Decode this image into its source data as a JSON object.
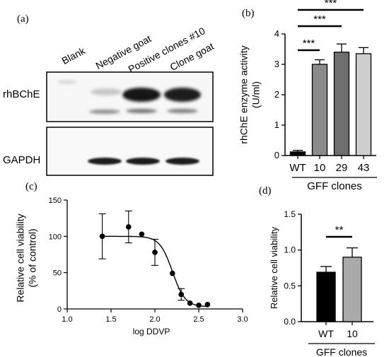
{
  "panels": {
    "a": "(a)",
    "b": "(b)",
    "c": "(c)",
    "d": "(d)"
  },
  "blot": {
    "columns": [
      "Blank",
      "Negative goat",
      "Positive clones #10",
      "Clone goat"
    ],
    "rows": [
      "rhBChE",
      "GAPDH"
    ]
  },
  "chart_data": [
    {
      "id": "b",
      "type": "bar",
      "categories": [
        "WT",
        "10",
        "29",
        "43"
      ],
      "values": [
        0.12,
        3.0,
        3.4,
        3.35
      ],
      "errors": [
        0.05,
        0.15,
        0.27,
        0.2
      ],
      "bar_colors": [
        "#000000",
        "#8c8c8c",
        "#6e6e6e",
        "#cfcfcf"
      ],
      "ylabel": "rhChE enzyme activity\n(U/ml)",
      "xgroup_label": "GFF clones",
      "ylim": [
        0,
        4
      ],
      "yticks": [
        0,
        1,
        2,
        3,
        4
      ],
      "significance": [
        {
          "from": 0,
          "to": 1,
          "label": "***"
        },
        {
          "from": 0,
          "to": 2,
          "label": "***"
        },
        {
          "from": 0,
          "to": 3,
          "label": "***"
        }
      ]
    },
    {
      "id": "c",
      "type": "scatter",
      "x": [
        1.4,
        1.7,
        1.85,
        2.0,
        2.2,
        2.3,
        2.4,
        2.5,
        2.6
      ],
      "y": [
        100,
        113,
        103,
        78,
        49,
        20,
        8,
        5,
        6
      ],
      "errors": [
        31,
        22,
        0,
        18,
        0,
        8,
        0,
        0,
        0
      ],
      "fit": {
        "top": 100,
        "bottom": 3,
        "ic50": 2.2,
        "slope": 6
      },
      "xlabel": "log DDVP",
      "ylabel": "Relative cell viability\n(% of control)",
      "xlim": [
        1.0,
        3.0
      ],
      "ylim": [
        0,
        150
      ],
      "xticks": [
        1.0,
        1.5,
        2.0,
        2.5,
        3.0
      ],
      "yticks": [
        0,
        50,
        100,
        150
      ]
    },
    {
      "id": "d",
      "type": "bar",
      "categories": [
        "WT",
        "10"
      ],
      "values": [
        0.69,
        0.9
      ],
      "errors": [
        0.08,
        0.13
      ],
      "bar_colors": [
        "#000000",
        "#aaaaaa"
      ],
      "ylabel": "Relative cell viability",
      "xgroup_label": "GFF clones",
      "ylim": [
        0,
        1.5
      ],
      "yticks": [
        0.0,
        0.5,
        1.0,
        1.5
      ],
      "significance": [
        {
          "from": 0,
          "to": 1,
          "label": "**"
        }
      ]
    }
  ]
}
